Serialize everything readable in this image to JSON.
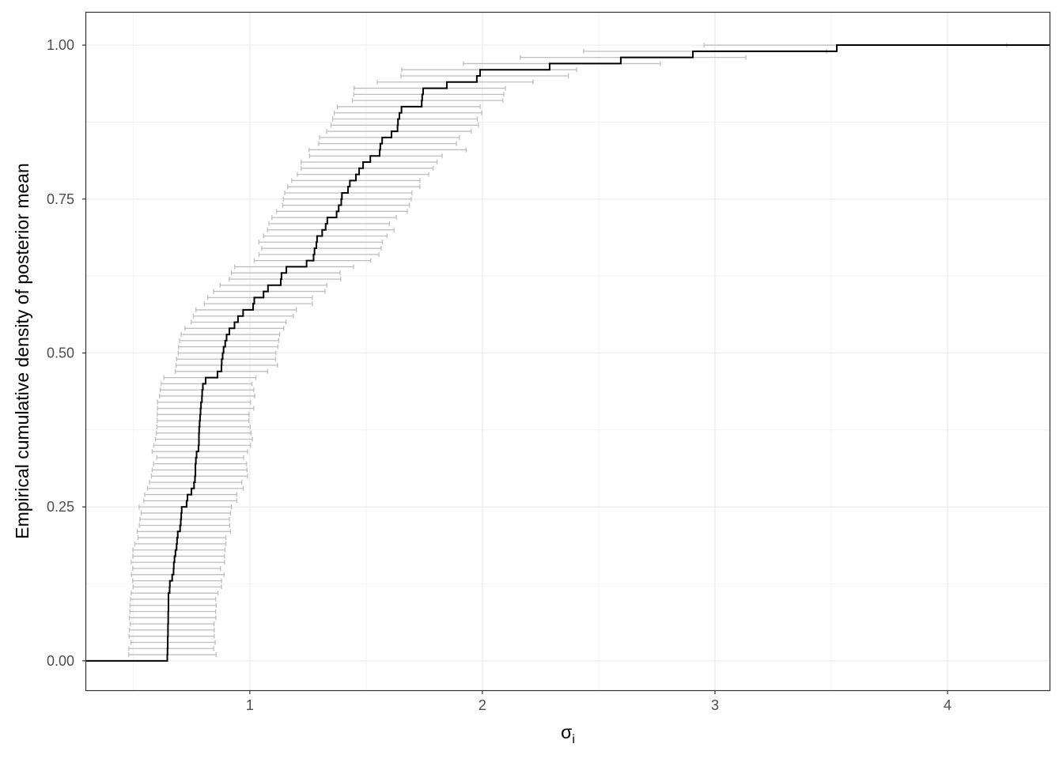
{
  "chart_data": {
    "type": "line",
    "subtype": "ecdf-step-with-horizontal-interval-bars",
    "title": "",
    "xlabel": "σ",
    "xlabel_subscript": "i",
    "ylabel": "Empirical cumulative density of posterior mean",
    "xlim": [
      0.293,
      4.442
    ],
    "ylim": [
      -0.049,
      1.054
    ],
    "x_ticks": [
      1,
      2,
      3,
      4
    ],
    "x_tick_labels": [
      "1",
      "2",
      "3",
      "4"
    ],
    "x_minor_ticks": [
      0.5,
      1.5,
      2.5,
      3.5
    ],
    "y_ticks": [
      0,
      0.25,
      0.5,
      0.75,
      1
    ],
    "y_tick_labels": [
      "0.00",
      "0.25",
      "0.50",
      "0.75",
      "1.00"
    ],
    "y_minor_ticks": [
      0.125,
      0.375,
      0.625,
      0.875
    ],
    "grid": true,
    "legend": "none",
    "colors": {
      "ecdf": "#000000",
      "interval": "#bebebe",
      "grid": "#ebebeb",
      "panel_border": "#333333"
    },
    "ecdf_y_step": 0.01,
    "posterior_mean": [
      0.645,
      0.646,
      0.647,
      0.647,
      0.648,
      0.648,
      0.649,
      0.649,
      0.65,
      0.65,
      0.65,
      0.655,
      0.656,
      0.666,
      0.672,
      0.673,
      0.676,
      0.68,
      0.685,
      0.687,
      0.69,
      0.7,
      0.703,
      0.705,
      0.707,
      0.728,
      0.732,
      0.749,
      0.76,
      0.764,
      0.766,
      0.766,
      0.768,
      0.771,
      0.779,
      0.781,
      0.781,
      0.782,
      0.784,
      0.786,
      0.788,
      0.79,
      0.794,
      0.795,
      0.798,
      0.81,
      0.861,
      0.878,
      0.879,
      0.883,
      0.887,
      0.894,
      0.9,
      0.912,
      0.934,
      0.949,
      0.971,
      1.014,
      1.019,
      1.059,
      1.078,
      1.133,
      1.136,
      1.157,
      1.244,
      1.274,
      1.278,
      1.286,
      1.289,
      1.311,
      1.326,
      1.333,
      1.373,
      1.382,
      1.393,
      1.396,
      1.422,
      1.43,
      1.456,
      1.47,
      1.487,
      1.518,
      1.558,
      1.561,
      1.569,
      1.609,
      1.635,
      1.637,
      1.643,
      1.652,
      1.739,
      1.741,
      1.745,
      1.847,
      1.976,
      1.99,
      2.289,
      2.595,
      2.905,
      3.524
    ],
    "interval_lower": [
      0.479,
      0.48,
      0.489,
      0.481,
      0.482,
      0.486,
      0.482,
      0.484,
      0.485,
      0.487,
      0.49,
      0.498,
      0.496,
      0.491,
      0.496,
      0.49,
      0.497,
      0.497,
      0.506,
      0.519,
      0.516,
      0.525,
      0.527,
      0.533,
      0.524,
      0.544,
      0.548,
      0.56,
      0.569,
      0.577,
      0.58,
      0.586,
      0.6,
      0.58,
      0.587,
      0.594,
      0.598,
      0.6,
      0.602,
      0.602,
      0.603,
      0.603,
      0.612,
      0.615,
      0.619,
      0.63,
      0.679,
      0.683,
      0.685,
      0.692,
      0.694,
      0.698,
      0.705,
      0.721,
      0.748,
      0.757,
      0.768,
      0.804,
      0.819,
      0.844,
      0.872,
      0.912,
      0.921,
      0.935,
      1.019,
      1.039,
      1.051,
      1.039,
      1.059,
      1.076,
      1.082,
      1.095,
      1.115,
      1.141,
      1.144,
      1.15,
      1.163,
      1.18,
      1.204,
      1.221,
      1.221,
      1.257,
      1.255,
      1.296,
      1.3,
      1.33,
      1.349,
      1.356,
      1.363,
      1.376,
      1.441,
      1.447,
      1.448,
      1.548,
      1.65,
      1.653,
      1.918,
      2.163,
      2.435,
      2.953
    ],
    "interval_upper": [
      0.855,
      0.844,
      0.851,
      0.847,
      0.847,
      0.846,
      0.854,
      0.853,
      0.855,
      0.853,
      0.863,
      0.878,
      0.878,
      0.889,
      0.874,
      0.891,
      0.891,
      0.893,
      0.897,
      0.897,
      0.917,
      0.913,
      0.912,
      0.917,
      0.921,
      0.944,
      0.944,
      0.972,
      0.965,
      0.99,
      0.988,
      0.986,
      0.973,
      0.99,
      1.003,
      1.011,
      1.005,
      1.002,
      0.996,
      0.996,
      1.017,
      1.003,
      1.021,
      1.017,
      1.009,
      1.026,
      1.076,
      1.119,
      1.11,
      1.112,
      1.121,
      1.124,
      1.128,
      1.146,
      1.156,
      1.187,
      1.2,
      1.269,
      1.269,
      1.323,
      1.331,
      1.391,
      1.388,
      1.446,
      1.52,
      1.555,
      1.565,
      1.57,
      1.59,
      1.62,
      1.6,
      1.63,
      1.677,
      1.686,
      1.694,
      1.697,
      1.731,
      1.731,
      1.769,
      1.788,
      1.805,
      1.827,
      1.93,
      1.888,
      1.901,
      1.952,
      1.983,
      1.978,
      1.997,
      1.99,
      2.088,
      2.092,
      2.099,
      2.218,
      2.37,
      2.405,
      2.765,
      3.133,
      3.48,
      4.255
    ]
  }
}
